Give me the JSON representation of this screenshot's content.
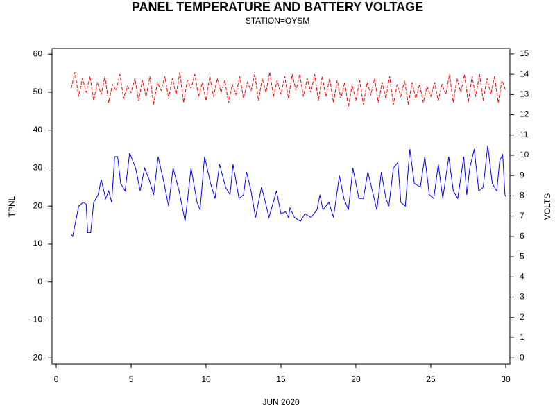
{
  "chart_data": {
    "type": "line",
    "title": "PANEL TEMPERATURE AND BATTERY VOLTAGE",
    "subtitle": "STATION=OYSM",
    "xlabel": "JUN 2020",
    "ylabel": "TPNL",
    "y2label": "VOLTS",
    "xlim": [
      -0.28,
      30.28
    ],
    "xticks": [
      0,
      5,
      10,
      15,
      20,
      25,
      30
    ],
    "ylim": [
      -21.6,
      61.5
    ],
    "yticks": [
      -20,
      -10,
      0,
      10,
      20,
      30,
      40,
      50,
      60
    ],
    "y2lim": [
      -0.3,
      15.27
    ],
    "y2ticks": [
      0,
      1,
      2,
      3,
      4,
      5,
      6,
      7,
      8,
      9,
      10,
      11,
      12,
      13,
      14,
      15
    ],
    "series": [
      {
        "name": "TPNL",
        "color": "#0000ff",
        "axis": "y",
        "dashed": false,
        "x": [
          1,
          1.1,
          1.5,
          1.8,
          2,
          2.1,
          2.3,
          2.5,
          2.8,
          3,
          3.3,
          3.5,
          3.7,
          3.9,
          4.1,
          4.3,
          4.6,
          4.9,
          5.3,
          5.6,
          5.9,
          6.2,
          6.5,
          6.8,
          7.2,
          7.5,
          7.8,
          8.2,
          8.6,
          9,
          9.4,
          9.6,
          9.9,
          10.3,
          10.6,
          10.9,
          11.3,
          11.6,
          11.8,
          12.2,
          12.5,
          12.7,
          13,
          13.3,
          13.7,
          13.9,
          14.2,
          14.7,
          15,
          15.3,
          15.5,
          15.6,
          15.9,
          16.3,
          16.6,
          17,
          17.4,
          17.6,
          17.8,
          18.2,
          18.5,
          18.9,
          19.2,
          19.5,
          19.8,
          20.2,
          20.5,
          20.8,
          21.1,
          21.4,
          21.7,
          22,
          22.2,
          22.5,
          22.8,
          23,
          23.3,
          23.6,
          23.9,
          24.3,
          24.6,
          24.9,
          25.2,
          25.5,
          25.8,
          26.2,
          26.5,
          26.8,
          27.2,
          27.4,
          27.6,
          27.9,
          28.2,
          28.5,
          28.8,
          29.1,
          29.4,
          29.6,
          29.8,
          29.95,
          30
        ],
        "values": [
          12.5,
          12,
          20,
          21,
          20.5,
          13,
          13,
          21,
          23,
          27,
          22,
          24,
          21,
          33,
          33,
          26,
          24,
          34,
          30,
          24,
          30,
          27,
          23,
          33,
          26,
          20,
          30,
          24,
          16,
          30,
          21,
          19,
          33,
          26,
          22,
          31,
          25,
          23,
          31,
          22,
          23,
          29,
          24,
          17,
          25,
          22,
          17,
          24,
          18,
          18.5,
          17,
          19.5,
          17,
          16,
          18,
          17,
          19,
          23,
          19,
          21,
          17,
          28,
          22,
          19,
          30,
          22,
          22,
          29,
          24,
          19,
          29,
          22,
          20,
          30,
          31.5,
          21,
          20,
          35,
          26,
          25,
          33,
          23,
          22,
          31,
          22,
          33,
          24,
          22,
          33,
          23,
          30,
          35,
          24,
          25,
          36,
          26,
          24,
          32,
          33.5,
          23,
          22.5
        ]
      },
      {
        "name": "VOLTS",
        "color": "#ff0000",
        "axis": "y2",
        "dashed": true,
        "x": [
          1,
          1.25,
          1.5,
          1.75,
          2,
          2.25,
          2.5,
          2.75,
          3,
          3.25,
          3.5,
          3.75,
          4,
          4.25,
          4.5,
          4.75,
          5,
          5.25,
          5.5,
          5.75,
          6,
          6.25,
          6.5,
          6.75,
          7,
          7.25,
          7.5,
          7.75,
          8,
          8.25,
          8.5,
          8.75,
          9,
          9.25,
          9.5,
          9.75,
          10,
          10.25,
          10.5,
          10.75,
          11,
          11.25,
          11.5,
          11.75,
          12,
          12.25,
          12.5,
          12.75,
          13,
          13.25,
          13.5,
          13.75,
          14,
          14.25,
          14.5,
          14.75,
          15,
          15.25,
          15.5,
          15.75,
          16,
          16.25,
          16.5,
          16.75,
          17,
          17.25,
          17.5,
          17.75,
          18,
          18.25,
          18.5,
          18.75,
          19,
          19.25,
          19.5,
          19.75,
          20,
          20.25,
          20.5,
          20.75,
          21,
          21.25,
          21.5,
          21.75,
          22,
          22.25,
          22.5,
          22.75,
          23,
          23.25,
          23.5,
          23.75,
          24,
          24.25,
          24.5,
          24.75,
          25,
          25.25,
          25.5,
          25.75,
          26,
          26.25,
          26.5,
          26.75,
          27,
          27.25,
          27.5,
          27.75,
          28,
          28.25,
          28.5,
          28.75,
          29,
          29.25,
          29.5,
          29.75,
          30
        ],
        "values": [
          13.3,
          14.1,
          12.9,
          13.8,
          13.1,
          13.9,
          12.7,
          13.6,
          13.0,
          13.9,
          12.6,
          13.5,
          13.2,
          14.0,
          12.8,
          13.4,
          13.1,
          13.8,
          12.7,
          13.7,
          12.9,
          13.9,
          12.5,
          13.6,
          13.2,
          13.9,
          12.8,
          13.8,
          13.0,
          14.1,
          12.6,
          13.7,
          13.3,
          14.0,
          12.9,
          13.6,
          12.7,
          13.9,
          12.9,
          13.8,
          13.1,
          13.7,
          12.6,
          13.5,
          13.0,
          13.9,
          12.8,
          13.6,
          13.2,
          14.0,
          12.7,
          13.8,
          13.1,
          14.1,
          12.9,
          13.7,
          13.0,
          13.9,
          12.8,
          14.0,
          13.2,
          14.0,
          12.9,
          13.8,
          13.1,
          14.0,
          12.7,
          13.9,
          12.9,
          13.8,
          12.6,
          13.7,
          12.8,
          13.6,
          12.4,
          13.5,
          12.7,
          13.7,
          12.5,
          13.6,
          13.0,
          13.8,
          12.6,
          13.6,
          12.8,
          13.9,
          12.5,
          13.5,
          12.9,
          13.7,
          12.5,
          13.6,
          12.8,
          13.5,
          12.6,
          13.4,
          12.9,
          13.6,
          12.7,
          13.5,
          13.0,
          14.0,
          12.6,
          13.8,
          13.1,
          14.0,
          12.6,
          13.9,
          12.9,
          14.0,
          12.7,
          13.8,
          13.0,
          13.9,
          12.6,
          13.7,
          13.2
        ]
      }
    ]
  }
}
